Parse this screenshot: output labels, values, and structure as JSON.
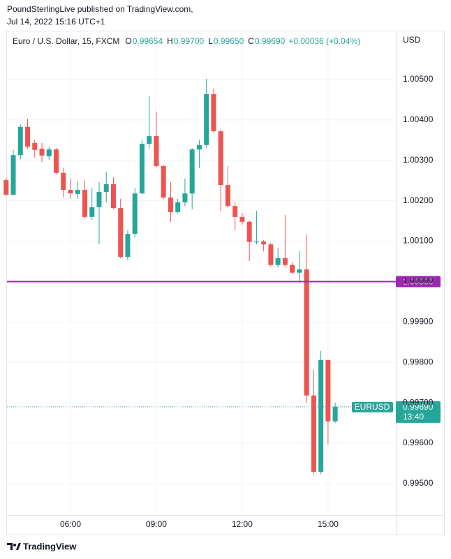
{
  "header": {
    "publisher": "PoundSterlingLive published on TradingView.com,",
    "date": "Jul 14, 2022 15:16 UTC+1"
  },
  "footer": {
    "brand": "TradingView"
  },
  "chart_data": {
    "type": "candlestick",
    "title": "Euro / U.S. Dollar, 15, FXCM",
    "legend": [
      {
        "key": "O",
        "value": "0.99654"
      },
      {
        "key": "H",
        "value": "0.99700"
      },
      {
        "key": "L",
        "value": "0.99650"
      },
      {
        "key": "C",
        "value": "0.99690"
      }
    ],
    "change": "+0.00036 (+0.04%)",
    "y_axis_label": "USD",
    "up_color": "#26a69a",
    "down_color": "#ef5350",
    "grid": true,
    "x": [
      3.75,
      4,
      4.25,
      4.5,
      4.75,
      5,
      5.25,
      5.5,
      5.75,
      6,
      6.25,
      6.5,
      6.75,
      7,
      7.25,
      7.5,
      7.75,
      8,
      8.25,
      8.5,
      8.75,
      9,
      9.25,
      9.5,
      9.75,
      10,
      10.25,
      10.5,
      10.75,
      11,
      11.25,
      11.5,
      11.75,
      12,
      12.25,
      12.5,
      12.75,
      13,
      13.25,
      13.5,
      13.75,
      14,
      14.25,
      14.5,
      14.75,
      15,
      15.25
    ],
    "open": [
      1.00251,
      1.00215,
      1.00313,
      1.00383,
      1.00343,
      1.00329,
      1.0031,
      1.00327,
      1.00269,
      1.00227,
      1.00217,
      1.00227,
      1.0016,
      1.00184,
      1.00222,
      1.00241,
      1.00182,
      1.00061,
      1.00118,
      1.00218,
      1.00341,
      1.0036,
      1.00286,
      1.00208,
      1.00172,
      1.00196,
      1.00218,
      1.00327,
      1.00338,
      1.00464,
      1.00372,
      1.00239,
      1.00187,
      1.0016,
      1.00148,
      1.00098,
      1.00099,
      1.00092,
      1.00041,
      1.00058,
      1.00041,
      1.00022,
      1.0003,
      0.99718,
      0.99529,
      0.99806,
      0.99654
    ],
    "high": [
      1.00256,
      1.00326,
      1.00389,
      1.00403,
      1.00351,
      1.00343,
      1.00334,
      1.00331,
      1.00282,
      1.00255,
      1.00248,
      1.00251,
      1.00231,
      1.00246,
      1.00272,
      1.00258,
      1.00205,
      1.00127,
      1.00231,
      1.00351,
      1.0046,
      1.00421,
      1.00289,
      1.00246,
      1.00205,
      1.00255,
      1.00331,
      1.00351,
      1.00502,
      1.00478,
      1.00377,
      1.00286,
      1.00196,
      1.0017,
      1.00151,
      1.00175,
      1.00103,
      1.00096,
      1.00084,
      1.00165,
      1.00048,
      1.00075,
      1.00117,
      0.99782,
      0.99828,
      0.99806,
      0.997
    ],
    "low": [
      1.00213,
      1.00213,
      1.00303,
      1.00329,
      1.00307,
      1.00296,
      1.00301,
      1.00265,
      1.00208,
      1.00205,
      1.00205,
      1.00156,
      1.00153,
      1.00092,
      1.00196,
      1.00179,
      1.00058,
      1.00053,
      1.0011,
      1.00217,
      1.00329,
      1.00282,
      1.00205,
      1.00148,
      1.00168,
      1.00187,
      1.00179,
      1.00281,
      1.00331,
      1.00369,
      1.00174,
      1.00182,
      1.00127,
      1.00141,
      1.00051,
      1.00092,
      1.00075,
      1.00037,
      1.00035,
      1.00035,
      1.00018,
      0.99997,
      0.99699,
      0.99523,
      0.99523,
      0.99597,
      0.9965
    ],
    "close": [
      1.00215,
      1.00313,
      1.00383,
      1.00334,
      1.00326,
      1.00312,
      1.00327,
      1.00269,
      1.00227,
      1.00218,
      1.00227,
      1.0016,
      1.00184,
      1.00222,
      1.00241,
      1.00182,
      1.00061,
      1.00118,
      1.00218,
      1.00341,
      1.0036,
      1.00286,
      1.00208,
      1.00172,
      1.00196,
      1.00218,
      1.00327,
      1.00338,
      1.00464,
      1.00372,
      1.00239,
      1.00187,
      1.0016,
      1.00148,
      1.00098,
      1.00099,
      1.00092,
      1.00041,
      1.00058,
      1.00041,
      1.00022,
      1.0003,
      0.99718,
      0.99529,
      0.99806,
      0.99654,
      0.9969
    ],
    "xlim": [
      3.78,
      17.37
    ],
    "xticks": [
      {
        "value": 6,
        "label": "06:00"
      },
      {
        "value": 9,
        "label": "09:00"
      },
      {
        "value": 12,
        "label": "12:00"
      },
      {
        "value": 15,
        "label": "15:00"
      }
    ],
    "ylim": [
      0.99422,
      1.00621
    ],
    "yticks": [
      {
        "value": 0.995,
        "label": "0.99500"
      },
      {
        "value": 0.996,
        "label": "0.99600"
      },
      {
        "value": 0.997,
        "label": "0.99700"
      },
      {
        "value": 0.998,
        "label": "0.99800"
      },
      {
        "value": 0.999,
        "label": "0.99900"
      },
      {
        "value": 1,
        "label": "1.00000"
      },
      {
        "value": 1.001,
        "label": "1.00100"
      },
      {
        "value": 1.002,
        "label": "1.00200"
      },
      {
        "value": 1.003,
        "label": "1.00300"
      },
      {
        "value": 1.004,
        "label": "1.00400"
      },
      {
        "value": 1.005,
        "label": "1.00500"
      }
    ],
    "level_line": {
      "value": 1,
      "label": "1.00000",
      "color": "#9c27b0"
    },
    "last_price": {
      "name": "EURUSD",
      "value": 0.9969,
      "label": "0.99690",
      "countdown": "13:40",
      "color": "#26a69a"
    }
  }
}
